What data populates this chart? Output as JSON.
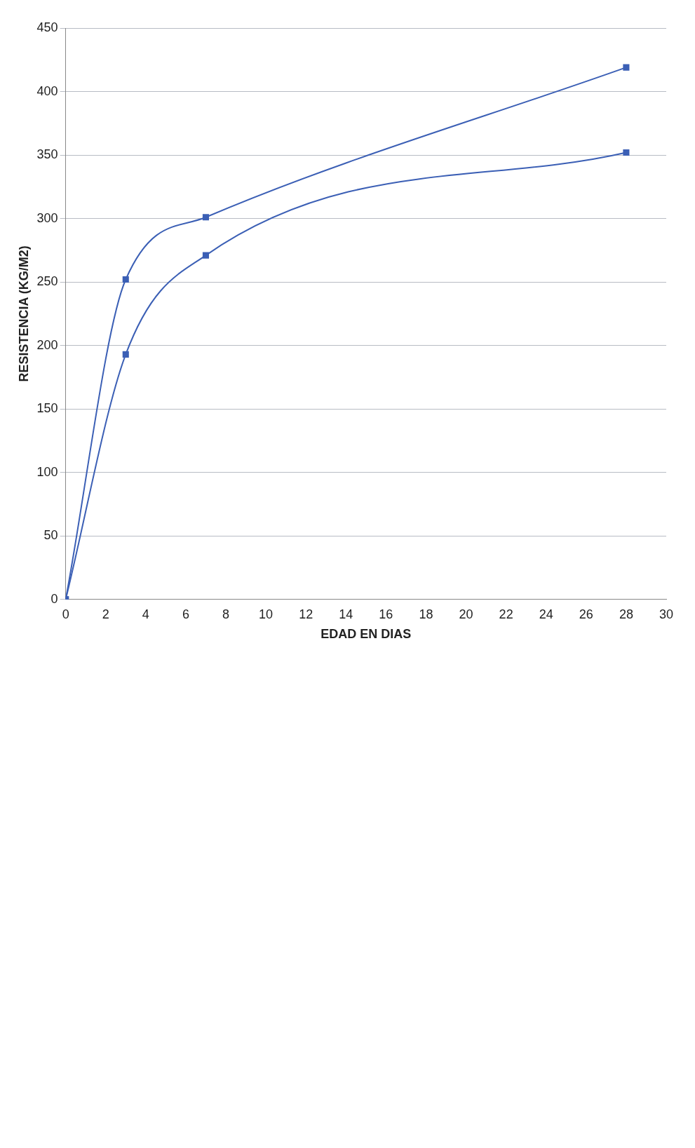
{
  "chart_data": {
    "type": "line",
    "xlabel": "EDAD EN DIAS",
    "ylabel": "RESISTENCIA (KG/M2)",
    "xlim": [
      0,
      30
    ],
    "xticks": [
      0,
      2,
      4,
      6,
      8,
      10,
      12,
      14,
      16,
      18,
      20,
      22,
      24,
      26,
      28,
      30
    ],
    "ylim": [
      0,
      450
    ],
    "yticks": [
      0,
      50,
      100,
      150,
      200,
      250,
      300,
      350,
      400,
      450
    ],
    "grid": "y",
    "legend": false,
    "marker": "square",
    "series": [
      {
        "color": "#3b5fb5",
        "x": [
          0,
          3,
          7,
          28
        ],
        "values": [
          0,
          252,
          301,
          419
        ]
      },
      {
        "color": "#3b5fb5",
        "x": [
          0,
          3,
          7,
          28
        ],
        "values": [
          0,
          193,
          271,
          352
        ]
      }
    ]
  }
}
